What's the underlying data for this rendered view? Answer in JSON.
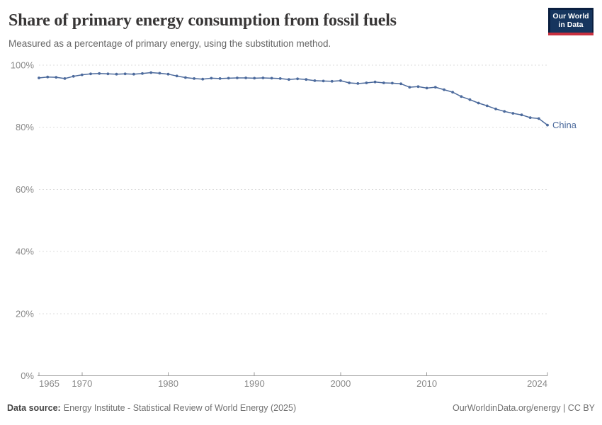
{
  "header": {
    "title": "Share of primary energy consumption from fossil fuels",
    "subtitle": "Measured as a percentage of primary energy, using the substitution method."
  },
  "logo": {
    "line1": "Our World",
    "line2": "in Data",
    "bg_color": "#16355E",
    "frame_color": "#0A1F40",
    "accent_color": "#C8303F"
  },
  "chart_data": {
    "type": "line",
    "title": "Share of primary energy consumption from fossil fuels",
    "xlabel": "",
    "ylabel": "",
    "xlim": [
      1965,
      2024
    ],
    "ylim": [
      0,
      100
    ],
    "grid": "horizontal-dashed",
    "xticks": [
      1965,
      1970,
      1980,
      1990,
      2000,
      2010,
      2024
    ],
    "yticks": [
      0,
      20,
      40,
      60,
      80,
      100
    ],
    "ytick_labels": [
      "0%",
      "20%",
      "40%",
      "60%",
      "80%",
      "100%"
    ],
    "colors": {
      "line": "#4C6A9C",
      "gridline": "#DCDCDC",
      "axis": "#9A9A9A",
      "tick_label": "#8A8A8A"
    },
    "series": [
      {
        "name": "China",
        "color": "#4C6A9C",
        "x": [
          1965,
          1966,
          1967,
          1968,
          1969,
          1970,
          1971,
          1972,
          1973,
          1974,
          1975,
          1976,
          1977,
          1978,
          1979,
          1980,
          1981,
          1982,
          1983,
          1984,
          1985,
          1986,
          1987,
          1988,
          1989,
          1990,
          1991,
          1992,
          1993,
          1994,
          1995,
          1996,
          1997,
          1998,
          1999,
          2000,
          2001,
          2002,
          2003,
          2004,
          2005,
          2006,
          2007,
          2008,
          2009,
          2010,
          2011,
          2012,
          2013,
          2014,
          2015,
          2016,
          2017,
          2018,
          2019,
          2020,
          2021,
          2022,
          2023,
          2024
        ],
        "values": [
          95.9,
          96.2,
          96.1,
          95.7,
          96.4,
          96.9,
          97.2,
          97.3,
          97.2,
          97.1,
          97.2,
          97.1,
          97.3,
          97.6,
          97.4,
          97.1,
          96.5,
          96.0,
          95.7,
          95.5,
          95.8,
          95.7,
          95.8,
          95.9,
          95.9,
          95.8,
          95.9,
          95.8,
          95.7,
          95.4,
          95.6,
          95.4,
          95.0,
          94.9,
          94.8,
          95.0,
          94.3,
          94.1,
          94.3,
          94.6,
          94.3,
          94.2,
          94.0,
          92.9,
          93.1,
          92.6,
          92.9,
          92.1,
          91.3,
          89.9,
          88.9,
          87.8,
          86.9,
          85.9,
          85.1,
          84.5,
          84.0,
          83.1,
          82.8,
          80.7
        ]
      }
    ]
  },
  "footer": {
    "data_source_label": "Data source:",
    "data_source_text": "Energy Institute - Statistical Review of World Energy (2025)",
    "credit": "OurWorldinData.org/energy | CC BY"
  }
}
